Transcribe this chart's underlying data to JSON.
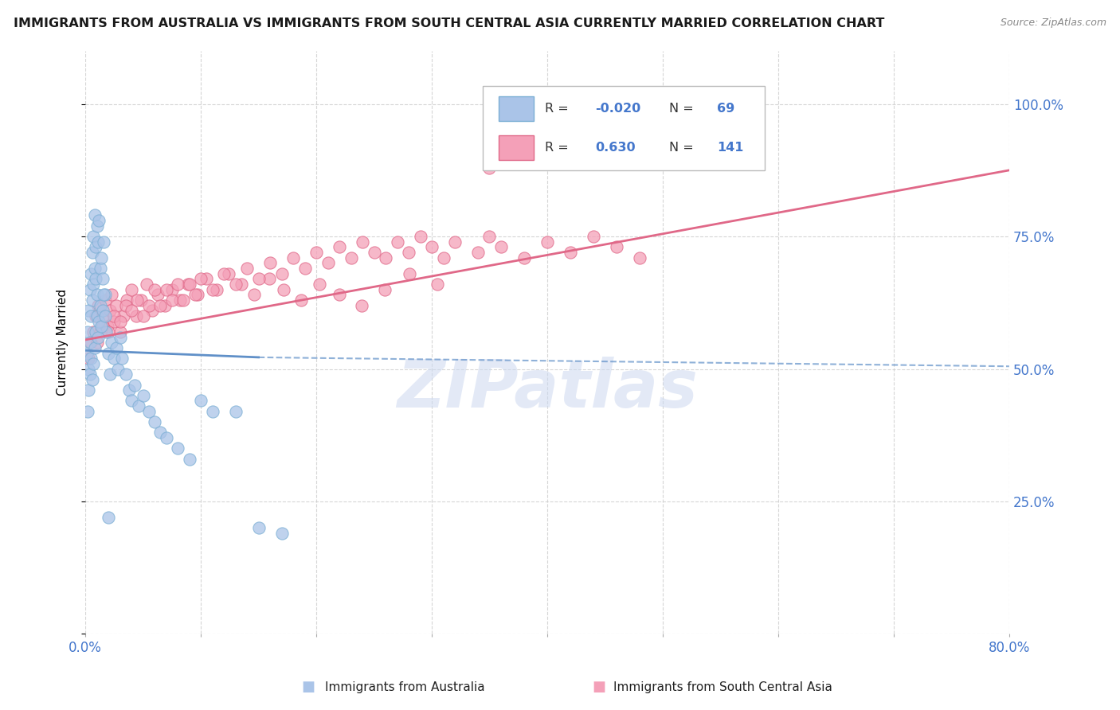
{
  "title": "IMMIGRANTS FROM AUSTRALIA VS IMMIGRANTS FROM SOUTH CENTRAL ASIA CURRENTLY MARRIED CORRELATION CHART",
  "source": "Source: ZipAtlas.com",
  "ylabel": "Currently Married",
  "xlim": [
    0.0,
    0.8
  ],
  "ylim": [
    0.0,
    1.1
  ],
  "color_australia": "#aac4e8",
  "color_australia_edge": "#7bafd4",
  "color_sca": "#f4a0b8",
  "color_sca_edge": "#e06888",
  "color_australia_line": "#6090c8",
  "color_sca_line": "#e06888",
  "color_text_blue": "#4477cc",
  "color_watermark": "#ccd8f0",
  "watermark_text": "ZIPatlas",
  "label_australia": "Immigrants from Australia",
  "label_sca": "Immigrants from South Central Asia",
  "bg_color": "#ffffff",
  "grid_color": "#cccccc",
  "australia_x": [
    0.001,
    0.002,
    0.003,
    0.003,
    0.004,
    0.004,
    0.005,
    0.005,
    0.006,
    0.006,
    0.007,
    0.007,
    0.008,
    0.008,
    0.009,
    0.009,
    0.01,
    0.01,
    0.011,
    0.012,
    0.013,
    0.014,
    0.015,
    0.016,
    0.017,
    0.018,
    0.02,
    0.021,
    0.023,
    0.025,
    0.027,
    0.028,
    0.03,
    0.032,
    0.035,
    0.038,
    0.04,
    0.043,
    0.046,
    0.05,
    0.055,
    0.06,
    0.065,
    0.07,
    0.08,
    0.09,
    0.1,
    0.11,
    0.13,
    0.15,
    0.17,
    0.002,
    0.003,
    0.004,
    0.005,
    0.006,
    0.007,
    0.008,
    0.009,
    0.01,
    0.011,
    0.012,
    0.013,
    0.014,
    0.015,
    0.016,
    0.017,
    0.02
  ],
  "australia_y": [
    0.53,
    0.57,
    0.61,
    0.5,
    0.65,
    0.55,
    0.68,
    0.6,
    0.72,
    0.63,
    0.75,
    0.66,
    0.79,
    0.69,
    0.73,
    0.67,
    0.77,
    0.64,
    0.74,
    0.78,
    0.69,
    0.71,
    0.67,
    0.74,
    0.64,
    0.57,
    0.53,
    0.49,
    0.55,
    0.52,
    0.54,
    0.5,
    0.56,
    0.52,
    0.49,
    0.46,
    0.44,
    0.47,
    0.43,
    0.45,
    0.42,
    0.4,
    0.38,
    0.37,
    0.35,
    0.33,
    0.44,
    0.42,
    0.42,
    0.2,
    0.19,
    0.42,
    0.46,
    0.49,
    0.52,
    0.48,
    0.51,
    0.54,
    0.57,
    0.6,
    0.56,
    0.59,
    0.62,
    0.58,
    0.61,
    0.64,
    0.6,
    0.22
  ],
  "sca_x": [
    0.003,
    0.005,
    0.007,
    0.009,
    0.011,
    0.013,
    0.015,
    0.017,
    0.019,
    0.021,
    0.023,
    0.025,
    0.027,
    0.03,
    0.033,
    0.036,
    0.04,
    0.044,
    0.048,
    0.053,
    0.058,
    0.063,
    0.069,
    0.075,
    0.082,
    0.089,
    0.097,
    0.105,
    0.114,
    0.124,
    0.135,
    0.146,
    0.159,
    0.172,
    0.187,
    0.203,
    0.22,
    0.239,
    0.259,
    0.281,
    0.305,
    0.01,
    0.015,
    0.02,
    0.025,
    0.03,
    0.035,
    0.04,
    0.045,
    0.05,
    0.055,
    0.06,
    0.065,
    0.07,
    0.075,
    0.08,
    0.085,
    0.09,
    0.095,
    0.1,
    0.11,
    0.12,
    0.13,
    0.14,
    0.15,
    0.16,
    0.17,
    0.18,
    0.19,
    0.2,
    0.21,
    0.22,
    0.23,
    0.24,
    0.25,
    0.26,
    0.27,
    0.28,
    0.29,
    0.3,
    0.31,
    0.32,
    0.34,
    0.35,
    0.36,
    0.38,
    0.4,
    0.42,
    0.44,
    0.46,
    0.48
  ],
  "sca_y": [
    0.52,
    0.55,
    0.57,
    0.6,
    0.62,
    0.57,
    0.6,
    0.63,
    0.58,
    0.61,
    0.64,
    0.59,
    0.62,
    0.57,
    0.6,
    0.63,
    0.65,
    0.6,
    0.63,
    0.66,
    0.61,
    0.64,
    0.62,
    0.65,
    0.63,
    0.66,
    0.64,
    0.67,
    0.65,
    0.68,
    0.66,
    0.64,
    0.67,
    0.65,
    0.63,
    0.66,
    0.64,
    0.62,
    0.65,
    0.68,
    0.66,
    0.55,
    0.58,
    0.57,
    0.6,
    0.59,
    0.62,
    0.61,
    0.63,
    0.6,
    0.62,
    0.65,
    0.62,
    0.65,
    0.63,
    0.66,
    0.63,
    0.66,
    0.64,
    0.67,
    0.65,
    0.68,
    0.66,
    0.69,
    0.67,
    0.7,
    0.68,
    0.71,
    0.69,
    0.72,
    0.7,
    0.73,
    0.71,
    0.74,
    0.72,
    0.71,
    0.74,
    0.72,
    0.75,
    0.73,
    0.71,
    0.74,
    0.72,
    0.75,
    0.73,
    0.71,
    0.74,
    0.72,
    0.75,
    0.73,
    0.71
  ],
  "sca_outlier_x": [
    0.35
  ],
  "sca_outlier_y": [
    0.88
  ],
  "australia_trend_x": [
    0.0,
    0.15,
    0.8
  ],
  "australia_trend_y": [
    0.535,
    0.522,
    0.505
  ],
  "sca_trend_x": [
    0.0,
    0.8
  ],
  "sca_trend_y": [
    0.555,
    0.875
  ]
}
